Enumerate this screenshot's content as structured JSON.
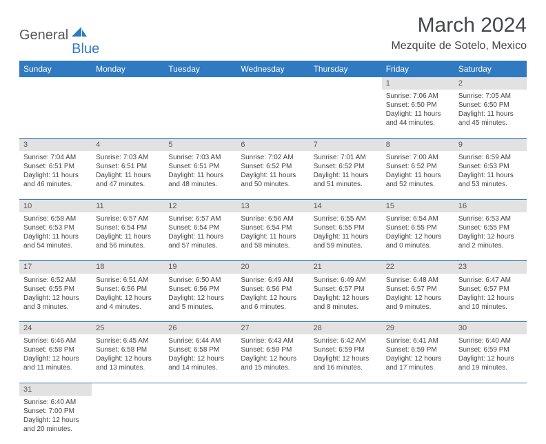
{
  "logo": {
    "part1": "General",
    "part2": "Blue"
  },
  "title": "March 2024",
  "location": "Mezquite de Sotelo, Mexico",
  "colors": {
    "header_bg": "#2f7ac0",
    "header_text": "#ffffff",
    "daynum_bg": "#e2e2e2",
    "border": "#2f7ac0",
    "title_text": "#44464a",
    "logo_gray": "#5a5a5a",
    "logo_blue": "#2f7ac0"
  },
  "weekdays": [
    "Sunday",
    "Monday",
    "Tuesday",
    "Wednesday",
    "Thursday",
    "Friday",
    "Saturday"
  ],
  "weeks": [
    [
      null,
      null,
      null,
      null,
      null,
      {
        "n": "1",
        "sr": "7:06 AM",
        "ss": "6:50 PM",
        "dl": "11 hours and 44 minutes."
      },
      {
        "n": "2",
        "sr": "7:05 AM",
        "ss": "6:50 PM",
        "dl": "11 hours and 45 minutes."
      }
    ],
    [
      {
        "n": "3",
        "sr": "7:04 AM",
        "ss": "6:51 PM",
        "dl": "11 hours and 46 minutes."
      },
      {
        "n": "4",
        "sr": "7:03 AM",
        "ss": "6:51 PM",
        "dl": "11 hours and 47 minutes."
      },
      {
        "n": "5",
        "sr": "7:03 AM",
        "ss": "6:51 PM",
        "dl": "11 hours and 48 minutes."
      },
      {
        "n": "6",
        "sr": "7:02 AM",
        "ss": "6:52 PM",
        "dl": "11 hours and 50 minutes."
      },
      {
        "n": "7",
        "sr": "7:01 AM",
        "ss": "6:52 PM",
        "dl": "11 hours and 51 minutes."
      },
      {
        "n": "8",
        "sr": "7:00 AM",
        "ss": "6:52 PM",
        "dl": "11 hours and 52 minutes."
      },
      {
        "n": "9",
        "sr": "6:59 AM",
        "ss": "6:53 PM",
        "dl": "11 hours and 53 minutes."
      }
    ],
    [
      {
        "n": "10",
        "sr": "6:58 AM",
        "ss": "6:53 PM",
        "dl": "11 hours and 54 minutes."
      },
      {
        "n": "11",
        "sr": "6:57 AM",
        "ss": "6:54 PM",
        "dl": "11 hours and 56 minutes."
      },
      {
        "n": "12",
        "sr": "6:57 AM",
        "ss": "6:54 PM",
        "dl": "11 hours and 57 minutes."
      },
      {
        "n": "13",
        "sr": "6:56 AM",
        "ss": "6:54 PM",
        "dl": "11 hours and 58 minutes."
      },
      {
        "n": "14",
        "sr": "6:55 AM",
        "ss": "6:55 PM",
        "dl": "11 hours and 59 minutes."
      },
      {
        "n": "15",
        "sr": "6:54 AM",
        "ss": "6:55 PM",
        "dl": "12 hours and 0 minutes."
      },
      {
        "n": "16",
        "sr": "6:53 AM",
        "ss": "6:55 PM",
        "dl": "12 hours and 2 minutes."
      }
    ],
    [
      {
        "n": "17",
        "sr": "6:52 AM",
        "ss": "6:55 PM",
        "dl": "12 hours and 3 minutes."
      },
      {
        "n": "18",
        "sr": "6:51 AM",
        "ss": "6:56 PM",
        "dl": "12 hours and 4 minutes."
      },
      {
        "n": "19",
        "sr": "6:50 AM",
        "ss": "6:56 PM",
        "dl": "12 hours and 5 minutes."
      },
      {
        "n": "20",
        "sr": "6:49 AM",
        "ss": "6:56 PM",
        "dl": "12 hours and 6 minutes."
      },
      {
        "n": "21",
        "sr": "6:49 AM",
        "ss": "6:57 PM",
        "dl": "12 hours and 8 minutes."
      },
      {
        "n": "22",
        "sr": "6:48 AM",
        "ss": "6:57 PM",
        "dl": "12 hours and 9 minutes."
      },
      {
        "n": "23",
        "sr": "6:47 AM",
        "ss": "6:57 PM",
        "dl": "12 hours and 10 minutes."
      }
    ],
    [
      {
        "n": "24",
        "sr": "6:46 AM",
        "ss": "6:58 PM",
        "dl": "12 hours and 11 minutes."
      },
      {
        "n": "25",
        "sr": "6:45 AM",
        "ss": "6:58 PM",
        "dl": "12 hours and 13 minutes."
      },
      {
        "n": "26",
        "sr": "6:44 AM",
        "ss": "6:58 PM",
        "dl": "12 hours and 14 minutes."
      },
      {
        "n": "27",
        "sr": "6:43 AM",
        "ss": "6:59 PM",
        "dl": "12 hours and 15 minutes."
      },
      {
        "n": "28",
        "sr": "6:42 AM",
        "ss": "6:59 PM",
        "dl": "12 hours and 16 minutes."
      },
      {
        "n": "29",
        "sr": "6:41 AM",
        "ss": "6:59 PM",
        "dl": "12 hours and 17 minutes."
      },
      {
        "n": "30",
        "sr": "6:40 AM",
        "ss": "6:59 PM",
        "dl": "12 hours and 19 minutes."
      }
    ],
    [
      {
        "n": "31",
        "sr": "6:40 AM",
        "ss": "7:00 PM",
        "dl": "12 hours and 20 minutes."
      },
      null,
      null,
      null,
      null,
      null,
      null
    ]
  ],
  "labels": {
    "sunrise": "Sunrise:",
    "sunset": "Sunset:",
    "daylight": "Daylight:"
  }
}
